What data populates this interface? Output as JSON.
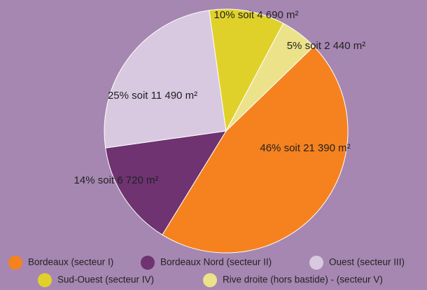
{
  "chart_data": {
    "type": "pie",
    "categories": [
      "Bordeaux (secteur I)",
      "Bordeaux Nord (secteur II)",
      "Ouest (secteur III)",
      "Sud-Ouest (secteur IV)",
      "Rive droite (hors bastide) - (secteur V)"
    ],
    "values": [
      46,
      14,
      25,
      10,
      5
    ],
    "value_labels": [
      "46% soit 21 390 m²",
      "14% soit 6 720 m²",
      "25% soit 11 490 m²",
      "10% soit 4 690 m²",
      "5% soit 2 440 m²"
    ],
    "colors": [
      "#f5821f",
      "#6e3370",
      "#d8c9e0",
      "#e0d12a",
      "#ebe28a"
    ]
  }
}
